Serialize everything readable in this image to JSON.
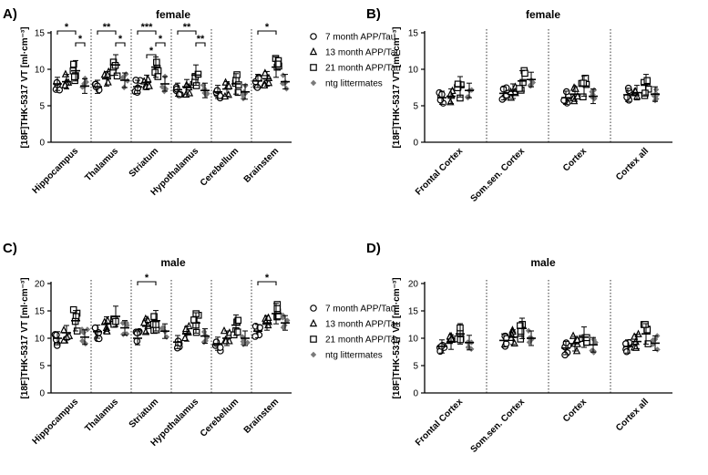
{
  "figure": {
    "y_axis_label": "[18F]THK-5317 VT [ml·cm⁻³]",
    "legend": [
      {
        "name": "7 month APP/Tau",
        "marker": "circle"
      },
      {
        "name": "13 month APP/Tau",
        "marker": "triangle"
      },
      {
        "name": "21 month APP/Tau",
        "marker": "square"
      },
      {
        "name": "ntg littermates",
        "marker": "diamond"
      }
    ],
    "colors": {
      "axis": "#000000",
      "ntg": "#7a7a7a"
    }
  },
  "chart_data": [
    {
      "panel": "A)",
      "type": "scatter",
      "title": "female",
      "ylabel": "[18F]THK-5317 VT [ml·cm⁻³]",
      "ylim": [
        0,
        15
      ],
      "yticks": [
        0,
        5,
        10,
        15
      ],
      "categories": [
        "Hippocampus",
        "Thalamus",
        "Striatum",
        "Hypothalamus",
        "Cerebellum",
        "Brainstem"
      ],
      "series": [
        {
          "name": "7 month APP/Tau",
          "values": [
            8.0,
            7.6,
            7.6,
            7.2,
            6.9,
            8.4
          ]
        },
        {
          "name": "13 month APP/Tau",
          "values": [
            8.3,
            8.7,
            8.2,
            7.6,
            7.3,
            8.7
          ]
        },
        {
          "name": "21 month APP/Tau",
          "values": [
            9.8,
            10.6,
            10.3,
            9.2,
            8.0,
            10.3
          ]
        },
        {
          "name": "ntg littermates",
          "values": [
            7.7,
            8.5,
            8.0,
            7.1,
            6.9,
            8.3
          ]
        }
      ],
      "significance": [
        {
          "category": "Hippocampus",
          "from": 0,
          "to": 2,
          "label": "*"
        },
        {
          "category": "Hippocampus",
          "from": 2,
          "to": 3,
          "label": "*"
        },
        {
          "category": "Thalamus",
          "from": 0,
          "to": 2,
          "label": "**"
        },
        {
          "category": "Thalamus",
          "from": 2,
          "to": 3,
          "label": "*"
        },
        {
          "category": "Striatum",
          "from": 0,
          "to": 2,
          "label": "***"
        },
        {
          "category": "Striatum",
          "from": 2,
          "to": 3,
          "label": "*"
        },
        {
          "category": "Striatum",
          "from": 1,
          "to": 2,
          "label": "*"
        },
        {
          "category": "Hypothalamus",
          "from": 0,
          "to": 2,
          "label": "**"
        },
        {
          "category": "Hypothalamus",
          "from": 2,
          "to": 3,
          "label": "**"
        },
        {
          "category": "Brainstem",
          "from": 0,
          "to": 2,
          "label": "*"
        }
      ]
    },
    {
      "panel": "B)",
      "type": "scatter",
      "title": "female",
      "ylabel": "[18F]THK-5317 VT [ml·cm⁻³]",
      "ylim": [
        0,
        15
      ],
      "yticks": [
        0,
        5,
        10,
        15
      ],
      "categories": [
        "Frontal Cortex",
        "Som.sen. Cortex",
        "Cortex",
        "Cortex all"
      ],
      "series": [
        {
          "name": "7 month APP/Tau",
          "values": [
            6.1,
            6.7,
            6.1,
            6.5
          ]
        },
        {
          "name": "13 month APP/Tau",
          "values": [
            6.3,
            7.0,
            6.6,
            6.8
          ]
        },
        {
          "name": "21 month APP/Tau",
          "values": [
            7.6,
            8.4,
            7.7,
            7.9
          ]
        },
        {
          "name": "ntg littermates",
          "values": [
            7.1,
            8.6,
            6.3,
            6.6
          ]
        }
      ],
      "significance": []
    },
    {
      "panel": "C)",
      "type": "scatter",
      "title": "male",
      "ylabel": "[18F]THK-5317 VT [ml·cm⁻³]",
      "ylim": [
        0,
        20
      ],
      "yticks": [
        0,
        5,
        10,
        15,
        20
      ],
      "categories": [
        "Hippocampus",
        "Thalamus",
        "Striatum",
        "Hypothalamus",
        "Cerebellum",
        "Brainstem"
      ],
      "series": [
        {
          "name": "7 month APP/Tau",
          "values": [
            10.0,
            11.2,
            10.0,
            9.3,
            9.0,
            11.3
          ]
        },
        {
          "name": "13 month APP/Tau",
          "values": [
            11.0,
            12.6,
            12.2,
            10.8,
            10.0,
            12.8
          ]
        },
        {
          "name": "21 month APP/Tau",
          "values": [
            13.2,
            14.0,
            13.2,
            12.8,
            12.4,
            14.5
          ]
        },
        {
          "name": "ntg littermates",
          "values": [
            10.2,
            11.9,
            11.3,
            10.4,
            10.0,
            12.8
          ]
        }
      ],
      "significance": [
        {
          "category": "Striatum",
          "from": 0,
          "to": 2,
          "label": "*"
        },
        {
          "category": "Brainstem",
          "from": 0,
          "to": 2,
          "label": "*"
        }
      ]
    },
    {
      "panel": "D)",
      "type": "scatter",
      "title": "male",
      "ylabel": "[18F]THK-5317 VT [ml·cm⁻³]",
      "ylim": [
        0,
        20
      ],
      "yticks": [
        0,
        5,
        10,
        15,
        20
      ],
      "categories": [
        "Frontal Cortex",
        "Som.sen. Cortex",
        "Cortex",
        "Cortex all"
      ],
      "series": [
        {
          "name": "7 month APP/Tau",
          "values": [
            8.5,
            9.6,
            8.2,
            8.5
          ]
        },
        {
          "name": "13 month APP/Tau",
          "values": [
            9.3,
            10.2,
            9.0,
            9.4
          ]
        },
        {
          "name": "21 month APP/Tau",
          "values": [
            10.8,
            11.8,
            10.2,
            10.8
          ]
        },
        {
          "name": "ntg littermates",
          "values": [
            9.2,
            10.0,
            8.8,
            9.1
          ]
        }
      ],
      "significance": []
    }
  ]
}
